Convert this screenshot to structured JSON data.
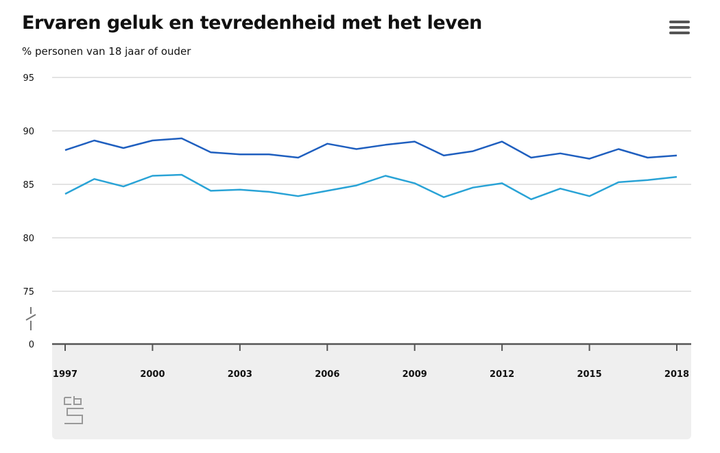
{
  "header": {
    "title": "Ervaren geluk en tevredenheid met het leven",
    "subtitle": "% personen van 18 jaar of ouder",
    "menu_icon": "hamburger-menu-icon"
  },
  "footer": {
    "logo_icon": "cbs-logo-icon"
  },
  "colors": {
    "series_1": "#1f5fbf",
    "series_2": "#29a3d6",
    "gridline": "#e3e3e3",
    "axis": "#555555",
    "panel": "#efefef"
  },
  "chart_data": {
    "type": "line",
    "title": "Ervaren geluk en tevredenheid met het leven",
    "subtitle": "% personen van 18 jaar of ouder",
    "xlabel": "",
    "ylabel": "",
    "x": [
      1997,
      1998,
      1999,
      2000,
      2001,
      2002,
      2003,
      2004,
      2005,
      2006,
      2007,
      2008,
      2009,
      2010,
      2011,
      2012,
      2013,
      2014,
      2015,
      2016,
      2017,
      2018
    ],
    "x_ticks": [
      "1997",
      "2000",
      "2003",
      "2006",
      "2009",
      "2012",
      "2015",
      "2018"
    ],
    "y_ticks": [
      "95",
      "90",
      "85",
      "80",
      "75",
      "0"
    ],
    "ylim": [
      75,
      95
    ],
    "axis_break": true,
    "axis_break_value": 0,
    "grid": true,
    "legend": "none",
    "series": [
      {
        "values": [
          88.2,
          89.1,
          88.4,
          89.1,
          89.3,
          88.0,
          87.8,
          87.8,
          87.5,
          88.8,
          88.3,
          88.7,
          89.0,
          87.7,
          88.1,
          89.0,
          87.5,
          87.9,
          87.4,
          88.3,
          87.5,
          87.7
        ]
      },
      {
        "values": [
          84.1,
          85.5,
          84.8,
          85.8,
          85.9,
          84.4,
          84.5,
          84.3,
          83.9,
          84.4,
          84.9,
          85.8,
          85.1,
          83.8,
          84.7,
          85.1,
          83.6,
          84.6,
          83.9,
          85.2,
          85.4,
          85.7
        ]
      }
    ]
  }
}
